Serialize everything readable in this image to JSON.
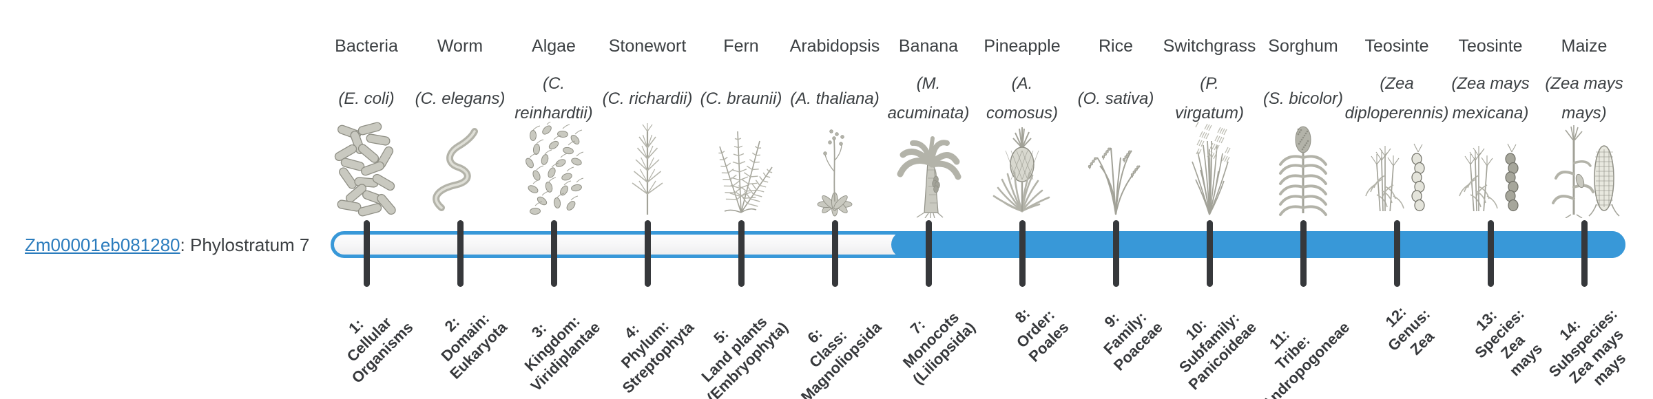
{
  "gene": {
    "id": "Zm00001eb081280",
    "suffix": ": Phylostratum 7"
  },
  "phylostratum": 7,
  "colors": {
    "bar_blue": "#3898d8",
    "tick_dark": "#36383b",
    "link_blue": "#2b7cbd",
    "text_dark": "#3c4043"
  },
  "organisms": [
    {
      "name": "Bacteria",
      "sci_lines": [
        "(E. coli)"
      ],
      "icon": "bacteria-illustration",
      "stratum_lines": [
        "1:",
        "Cellular",
        "Organisms"
      ]
    },
    {
      "name": "Worm",
      "sci_lines": [
        "(C. elegans)"
      ],
      "icon": "worm-illustration",
      "stratum_lines": [
        "2:",
        "Domain:",
        "Eukaryota"
      ]
    },
    {
      "name": "Algae",
      "sci_lines": [
        "(C.",
        "reinhardtii)"
      ],
      "icon": "algae-illustration",
      "stratum_lines": [
        "3:",
        "Kingdom:",
        "Viridiplantae"
      ]
    },
    {
      "name": "Stonewort",
      "sci_lines": [
        "(C. richardii)"
      ],
      "icon": "stonewort-illustration",
      "stratum_lines": [
        "4:",
        "Phylum:",
        "Streptophyta"
      ]
    },
    {
      "name": "Fern",
      "sci_lines": [
        "(C. braunii)"
      ],
      "icon": "fern-illustration",
      "stratum_lines": [
        "5:",
        "Land plants",
        "(Embryophyta)"
      ]
    },
    {
      "name": "Arabidopsis",
      "sci_lines": [
        "(A. thaliana)"
      ],
      "icon": "arabidopsis-illustration",
      "stratum_lines": [
        "6:",
        "Class:",
        "Magnoliopsida"
      ]
    },
    {
      "name": "Banana",
      "sci_lines": [
        "(M.",
        "acuminata)"
      ],
      "icon": "banana-illustration",
      "stratum_lines": [
        "7:",
        "Monocots",
        "(Liliopsida)"
      ]
    },
    {
      "name": "Pineapple",
      "sci_lines": [
        "(A.",
        "comosus)"
      ],
      "icon": "pineapple-illustration",
      "stratum_lines": [
        "8:",
        "Order:",
        "Poales"
      ]
    },
    {
      "name": "Rice",
      "sci_lines": [
        "(O. sativa)"
      ],
      "icon": "rice-illustration",
      "stratum_lines": [
        "9:",
        "Family:",
        "Poaceae"
      ]
    },
    {
      "name": "Switchgrass",
      "sci_lines": [
        "(P.",
        "virgatum)"
      ],
      "icon": "switchgrass-illustration",
      "stratum_lines": [
        "10:",
        "Subfamily:",
        "Panicoideae"
      ]
    },
    {
      "name": "Sorghum",
      "sci_lines": [
        "(S. bicolor)"
      ],
      "icon": "sorghum-illustration",
      "stratum_lines": [
        "11:",
        "Tribe:",
        "Andropogoneae"
      ]
    },
    {
      "name": "Teosinte",
      "sci_lines": [
        "(Zea",
        "diploperennis)"
      ],
      "icon": "teosinte-diploperennis-illustration",
      "stratum_lines": [
        "12:",
        "Genus:",
        "Zea"
      ]
    },
    {
      "name": "Teosinte",
      "sci_lines": [
        "(Zea mays",
        "mexicana)"
      ],
      "icon": "teosinte-mexicana-illustration",
      "stratum_lines": [
        "13:",
        "Species:",
        "Zea",
        "mays"
      ]
    },
    {
      "name": "Maize",
      "sci_lines": [
        "(Zea mays",
        "mays)"
      ],
      "icon": "maize-illustration",
      "stratum_lines": [
        "14:",
        "Subspecies:",
        "Zea mays",
        "mays"
      ]
    }
  ]
}
